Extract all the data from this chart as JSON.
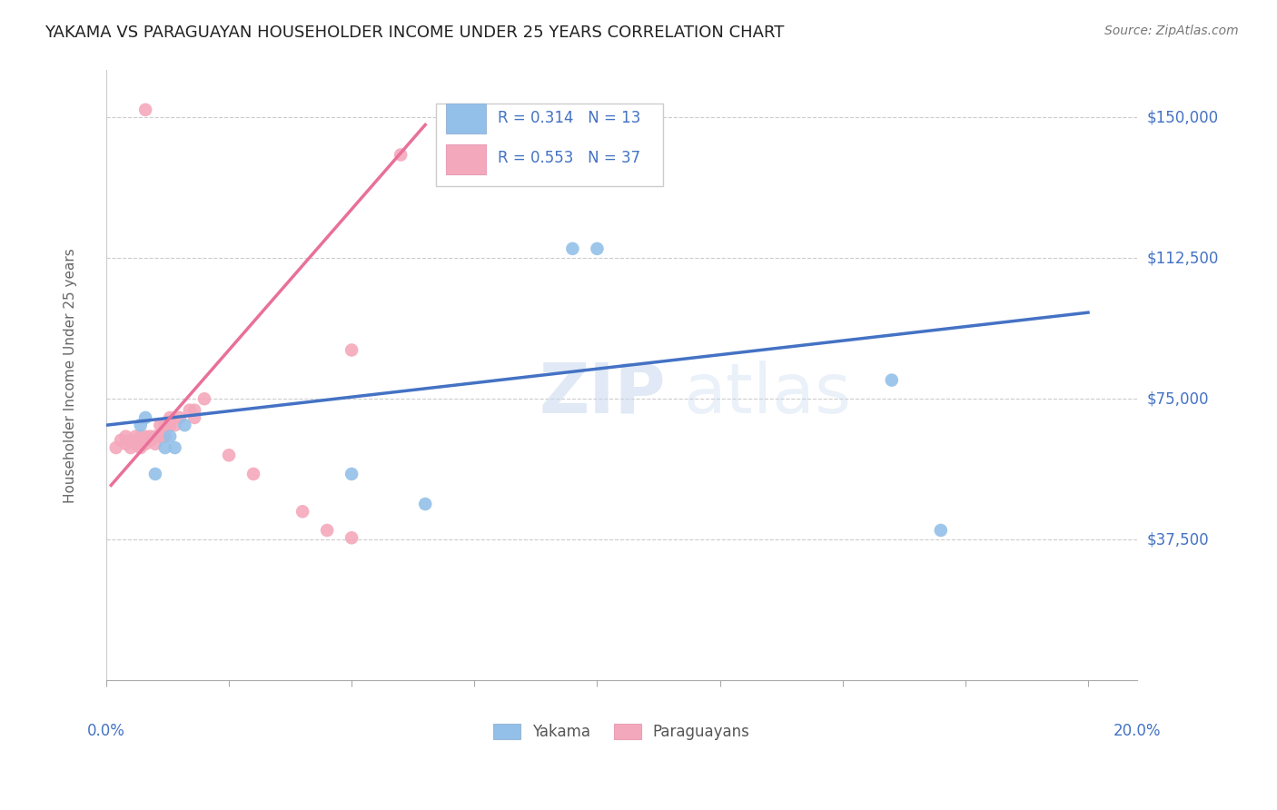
{
  "title": "YAKAMA VS PARAGUAYAN HOUSEHOLDER INCOME UNDER 25 YEARS CORRELATION CHART",
  "source": "Source: ZipAtlas.com",
  "ylabel": "Householder Income Under 25 years",
  "ytick_labels": [
    "$37,500",
    "$75,000",
    "$112,500",
    "$150,000"
  ],
  "ytick_values": [
    37500,
    75000,
    112500,
    150000
  ],
  "ylim": [
    0,
    162500
  ],
  "xlim": [
    0.0,
    0.21
  ],
  "legend1_r": "0.314",
  "legend1_n": "13",
  "legend2_r": "0.553",
  "legend2_n": "37",
  "watermark1": "ZIP",
  "watermark2": "atlas",
  "yakama_color": "#92C0E8",
  "paraguayan_color": "#F4A8BB",
  "yakama_line_color": "#4472C4",
  "paraguayan_line_color": "#E8709A",
  "yakama_x": [
    0.007,
    0.008,
    0.01,
    0.012,
    0.013,
    0.014,
    0.016,
    0.095,
    0.1,
    0.16,
    0.17,
    0.05,
    0.065
  ],
  "yakama_y": [
    68000,
    70000,
    55000,
    62000,
    65000,
    62000,
    68000,
    115000,
    115000,
    80000,
    40000,
    55000,
    47000
  ],
  "paraguayan_x": [
    0.002,
    0.003,
    0.004,
    0.004,
    0.005,
    0.005,
    0.006,
    0.006,
    0.007,
    0.007,
    0.007,
    0.008,
    0.008,
    0.009,
    0.009,
    0.01,
    0.01,
    0.011,
    0.011,
    0.012,
    0.012,
    0.013,
    0.013,
    0.014,
    0.015,
    0.017,
    0.018,
    0.018,
    0.02,
    0.025,
    0.03,
    0.04,
    0.045,
    0.05,
    0.06,
    0.05,
    0.008
  ],
  "paraguayan_y": [
    62000,
    64000,
    65000,
    63000,
    64000,
    62000,
    65000,
    63000,
    65000,
    63000,
    62000,
    65000,
    63000,
    65000,
    64000,
    65000,
    63000,
    68000,
    65000,
    68000,
    65000,
    70000,
    68000,
    68000,
    70000,
    72000,
    72000,
    70000,
    75000,
    60000,
    55000,
    45000,
    40000,
    88000,
    140000,
    38000,
    152000
  ],
  "blue_line_x": [
    0.0,
    0.2
  ],
  "blue_line_y": [
    68000,
    98000
  ],
  "pink_line_x": [
    0.001,
    0.065
  ],
  "pink_line_y": [
    52000,
    148000
  ]
}
